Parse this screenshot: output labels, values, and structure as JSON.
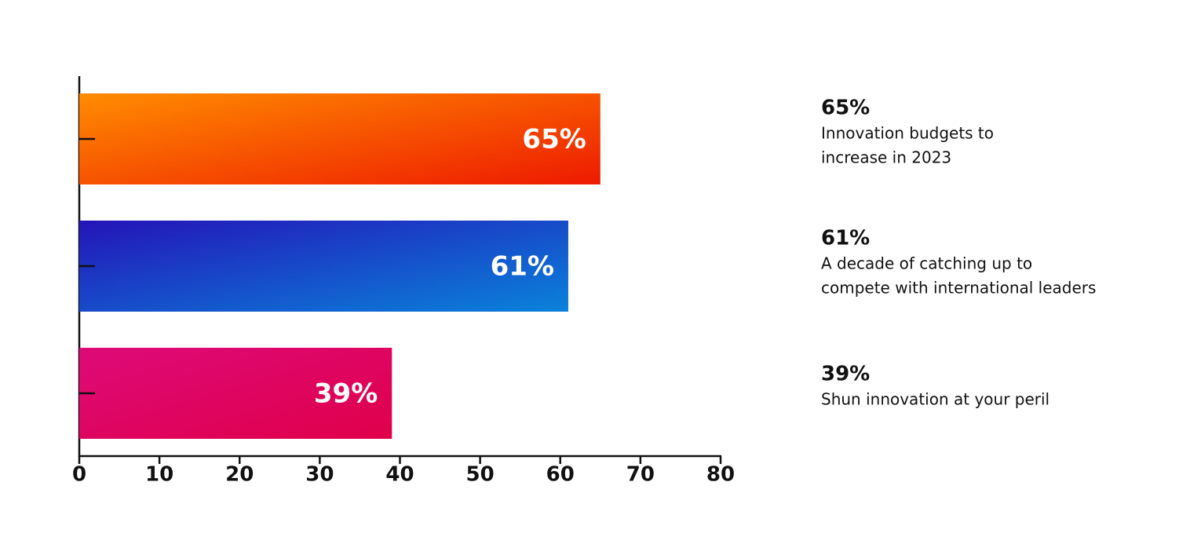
{
  "chart_data": {
    "type": "hbar",
    "categories": [
      null,
      null,
      null
    ],
    "values": [
      65,
      61,
      39
    ],
    "value_labels": [
      "65%",
      "61%",
      "39%"
    ],
    "colors": [
      [
        "#ff8c00",
        "#ee1a00"
      ],
      [
        "#2414b8",
        "#0a82da"
      ],
      [
        "#dd0a78",
        "#e0004a"
      ]
    ],
    "xlim": [
      0,
      80
    ],
    "xticks": [
      0,
      10,
      20,
      30,
      40,
      50,
      60,
      70,
      80
    ],
    "annotations": [
      {
        "heading": "65%",
        "lines": [
          "Innovation budgets to",
          "increase in 2023"
        ]
      },
      {
        "heading": "61%",
        "lines": [
          "A decade of catching up to",
          "compete with international leaders"
        ]
      },
      {
        "heading": "39%",
        "lines": [
          "Shun innovation at your peril"
        ]
      }
    ]
  }
}
